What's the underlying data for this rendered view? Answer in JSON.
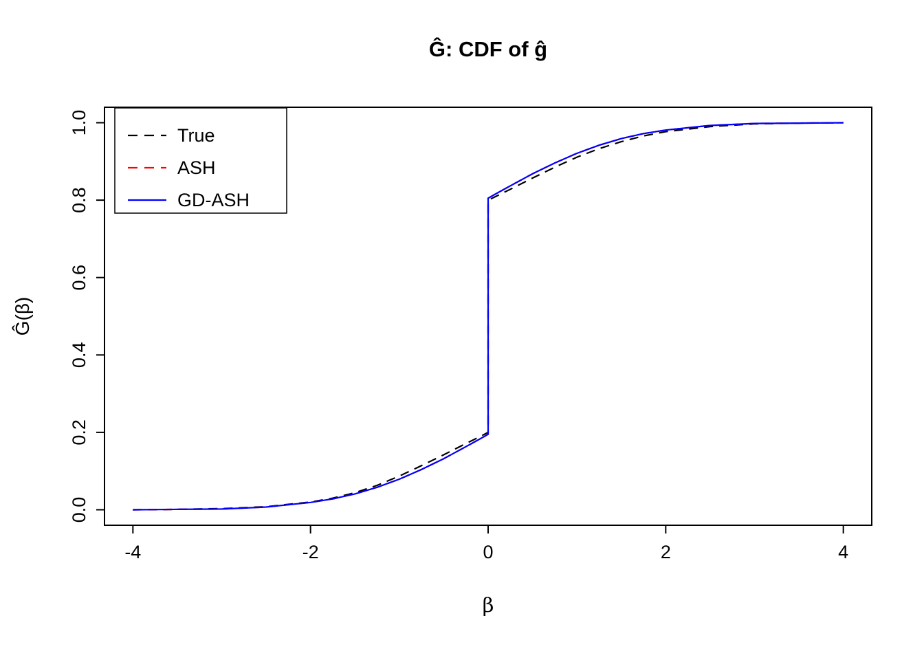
{
  "title": "Ĝ: CDF of ĝ",
  "xlabel": "β",
  "ylabel": "Ĝ(β)",
  "colors": {
    "true_line": "#000000",
    "ash_line": "#FF0000",
    "gdash_line": "#0000FF",
    "axis": "#000000",
    "background": "#FFFFFF"
  },
  "chart_data": {
    "type": "line",
    "title": "Ĝ: CDF of ĝ",
    "xlabel": "β",
    "ylabel": "Ĝ(β)",
    "xlim": [
      -4,
      4
    ],
    "ylim": [
      0,
      1
    ],
    "xticks": [
      -4,
      -2,
      0,
      2,
      4
    ],
    "yticks": [
      0.0,
      0.2,
      0.4,
      0.6,
      0.8,
      1.0
    ],
    "grid": false,
    "legend_position": "top-left",
    "note": "CDF with a point mass at 0: curves jump from ~0.2 to ~0.8 at beta=0; True/ASH/GD-ASH nearly overlap",
    "x": [
      -4,
      -3.5,
      -3,
      -2.5,
      -2,
      -1.75,
      -1.5,
      -1.25,
      -1,
      -0.75,
      -0.5,
      -0.25,
      -0.1,
      0,
      0,
      0.1,
      0.25,
      0.5,
      0.75,
      1,
      1.25,
      1.5,
      1.75,
      2,
      2.5,
      3,
      3.5,
      4
    ],
    "series": [
      {
        "name": "True",
        "color": "#000000",
        "style": "dashed",
        "values": [
          0.0,
          0.001,
          0.003,
          0.008,
          0.02,
          0.03,
          0.044,
          0.063,
          0.087,
          0.114,
          0.142,
          0.171,
          0.188,
          0.2,
          0.8,
          0.811,
          0.828,
          0.857,
          0.885,
          0.911,
          0.933,
          0.951,
          0.966,
          0.977,
          0.99,
          0.997,
          0.999,
          1.0
        ]
      },
      {
        "name": "ASH",
        "color": "#FF0000",
        "style": "dashed",
        "values": [
          0.0,
          0.001,
          0.002,
          0.007,
          0.019,
          0.028,
          0.041,
          0.058,
          0.079,
          0.104,
          0.132,
          0.163,
          0.182,
          0.195,
          0.805,
          0.818,
          0.837,
          0.868,
          0.896,
          0.921,
          0.942,
          0.959,
          0.972,
          0.981,
          0.993,
          0.998,
          0.999,
          1.0
        ]
      },
      {
        "name": "GD-ASH",
        "color": "#0000FF",
        "style": "solid",
        "values": [
          0.0,
          0.001,
          0.002,
          0.007,
          0.019,
          0.028,
          0.041,
          0.058,
          0.079,
          0.104,
          0.132,
          0.163,
          0.182,
          0.195,
          0.805,
          0.818,
          0.837,
          0.868,
          0.896,
          0.921,
          0.942,
          0.959,
          0.972,
          0.981,
          0.993,
          0.998,
          0.999,
          1.0
        ]
      }
    ]
  }
}
